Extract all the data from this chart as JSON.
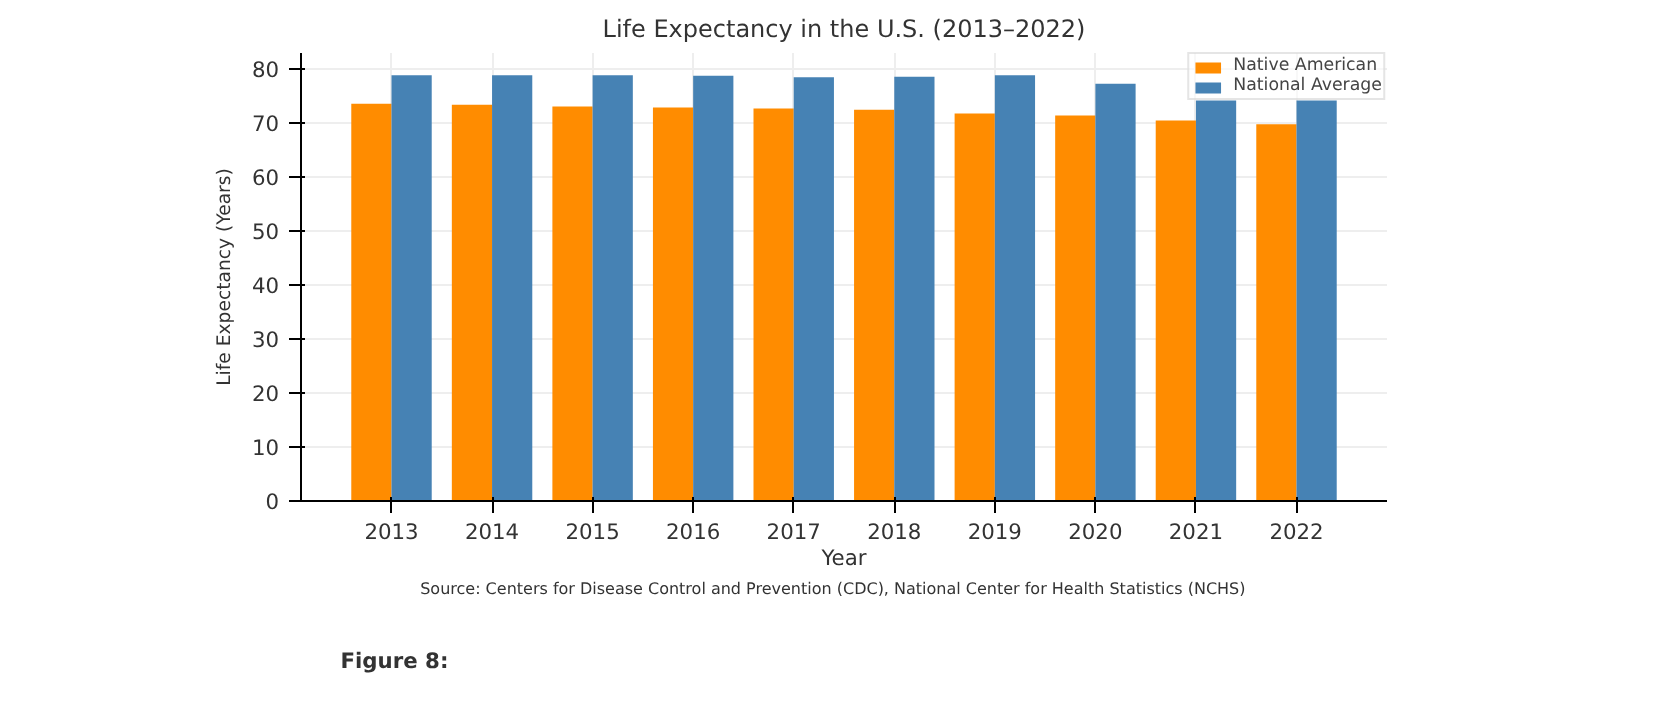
{
  "chart_data": {
    "type": "bar",
    "title": "Life Expectancy in the U.S. (2013–2022)",
    "xlabel": "Year",
    "ylabel": "Life Expectancy (Years)",
    "categories": [
      "2013",
      "2014",
      "2015",
      "2016",
      "2017",
      "2018",
      "2019",
      "2020",
      "2021",
      "2022"
    ],
    "series": [
      {
        "name": "Native American",
        "color": "#ff8c00",
        "values": [
          73.6,
          73.4,
          73.1,
          72.9,
          72.7,
          72.5,
          71.8,
          71.4,
          70.5,
          69.8
        ]
      },
      {
        "name": "National Average",
        "color": "#4682b4",
        "values": [
          78.9,
          78.9,
          78.9,
          78.8,
          78.5,
          78.6,
          78.9,
          77.3,
          74.2,
          74.2
        ]
      }
    ],
    "ylim": [
      0,
      83
    ],
    "yticks": [
      0,
      10,
      20,
      30,
      40,
      50,
      60,
      70,
      80
    ],
    "grid": true,
    "legend": "top right",
    "annotations": [
      "Source: Centers for Disease Control and Prevention (CDC), National Center for Health Statistics (NCHS)",
      "Figure 8:"
    ]
  }
}
